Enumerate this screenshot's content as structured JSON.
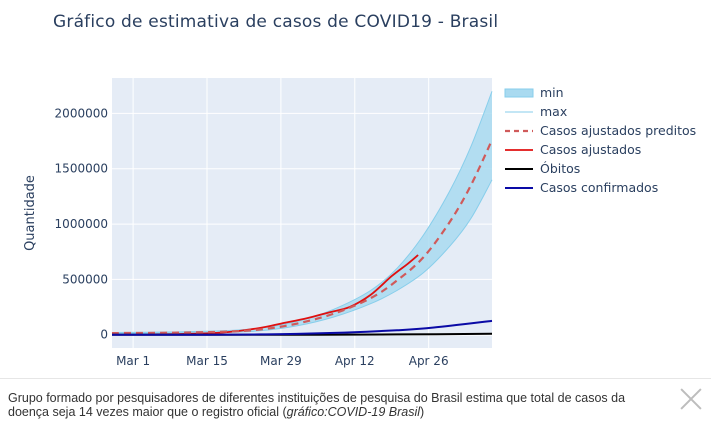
{
  "caption": {
    "text": "Grupo formado por pesquisadores de diferentes instituições de pesquisa do Brasil estima que total de casos da doença seja 14 vezes maior que o registro oficial (",
    "source": "gráfico:COVID-19 Brasil",
    "close": ")"
  },
  "close_icon": "close-icon",
  "colors": {
    "plot_bg": "#e5ecf6",
    "band": "#a9daf0",
    "band_line": "#87ceeb",
    "predicted": "#d05a5a",
    "adjusted": "#e01010",
    "deaths": "#000000",
    "confirmed": "#0a0aa6",
    "text": "#2a3f5f"
  },
  "chart_data": {
    "type": "line",
    "title": "Gráfico de estimativa de casos de COVID19 - Brasil",
    "xlabel": "",
    "ylabel": "Quantidade",
    "x_ticks": [
      "Mar 1",
      "Mar 15",
      "Mar 29",
      "Apr 12",
      "Apr 26"
    ],
    "x_tick_dates": [
      "2020-03-01",
      "2020-03-15",
      "2020-03-29",
      "2020-04-12",
      "2020-04-26"
    ],
    "xlim": [
      "2020-02-26",
      "2020-05-08"
    ],
    "y_ticks": [
      0,
      500000,
      1000000,
      1500000,
      2000000
    ],
    "y_tick_labels": [
      "0",
      "500000",
      "1000000",
      "1500000",
      "2000000"
    ],
    "ylim": [
      -120000,
      2320000
    ],
    "grid": true,
    "legend_position": "right",
    "series": [
      {
        "name": "min",
        "style": "band-lower",
        "x": [
          "2020-02-26",
          "2020-03-08",
          "2020-03-18",
          "2020-03-25",
          "2020-04-01",
          "2020-04-08",
          "2020-04-15",
          "2020-04-20",
          "2020-04-25",
          "2020-04-30",
          "2020-05-04",
          "2020-05-08"
        ],
        "values": [
          10000,
          12000,
          20000,
          35000,
          80000,
          160000,
          280000,
          400000,
          560000,
          800000,
          1050000,
          1400000
        ]
      },
      {
        "name": "max",
        "style": "band-upper",
        "x": [
          "2020-02-26",
          "2020-03-08",
          "2020-03-18",
          "2020-03-25",
          "2020-04-01",
          "2020-04-08",
          "2020-04-15",
          "2020-04-20",
          "2020-04-25",
          "2020-04-30",
          "2020-05-04",
          "2020-05-08"
        ],
        "values": [
          20000,
          25000,
          35000,
          60000,
          120000,
          230000,
          400000,
          600000,
          900000,
          1300000,
          1700000,
          2200000
        ]
      },
      {
        "name": "Casos ajustados preditos",
        "style": "dash",
        "x": [
          "2020-02-26",
          "2020-03-08",
          "2020-03-18",
          "2020-03-25",
          "2020-04-01",
          "2020-04-08",
          "2020-04-15",
          "2020-04-20",
          "2020-04-25",
          "2020-04-30",
          "2020-05-04",
          "2020-05-08"
        ],
        "values": [
          15000,
          18000,
          27000,
          47000,
          100000,
          190000,
          330000,
          490000,
          700000,
          1020000,
          1350000,
          1760000
        ]
      },
      {
        "name": "Casos ajustados",
        "style": "solid",
        "x": [
          "2020-03-05",
          "2020-03-12",
          "2020-03-18",
          "2020-03-22",
          "2020-03-26",
          "2020-03-30",
          "2020-04-03",
          "2020-04-07",
          "2020-04-11",
          "2020-04-15",
          "2020-04-19",
          "2020-04-22",
          "2020-04-24"
        ],
        "values": [
          3000,
          8000,
          20000,
          40000,
          70000,
          110000,
          150000,
          200000,
          250000,
          360000,
          530000,
          640000,
          720000
        ]
      },
      {
        "name": "Óbitos",
        "style": "solid",
        "x": [
          "2020-02-26",
          "2020-03-20",
          "2020-04-05",
          "2020-04-20",
          "2020-05-08"
        ],
        "values": [
          0,
          100,
          500,
          2500,
          8000
        ]
      },
      {
        "name": "Casos confirmados",
        "style": "solid",
        "x": [
          "2020-02-26",
          "2020-03-15",
          "2020-03-25",
          "2020-04-01",
          "2020-04-10",
          "2020-04-20",
          "2020-04-27",
          "2020-05-08"
        ],
        "values": [
          0,
          200,
          2500,
          7000,
          19000,
          40000,
          65000,
          125000
        ]
      }
    ]
  }
}
